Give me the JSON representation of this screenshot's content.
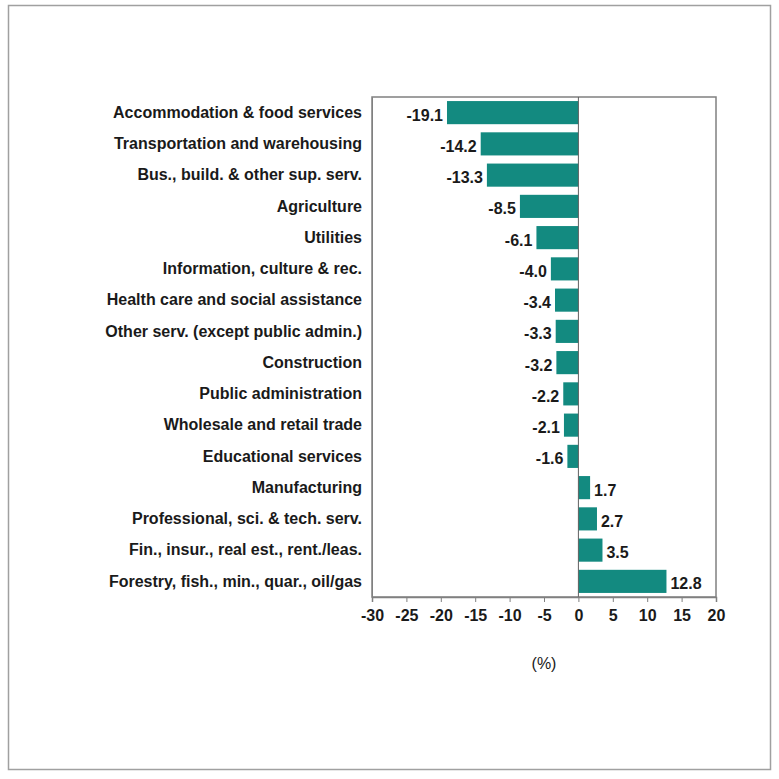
{
  "chart_data": {
    "type": "bar",
    "orientation": "horizontal",
    "categories": [
      "Accommodation & food services",
      "Transportation and warehousing",
      "Bus., build. & other sup. serv.",
      "Agriculture",
      "Utilities",
      "Information, culture & rec.",
      "Health care and social assistance",
      "Other serv. (except public admin.)",
      "Construction",
      "Public administration",
      "Wholesale and retail trade",
      "Educational services",
      "Manufacturing",
      "Professional, sci. & tech. serv.",
      "Fin., insur., real est., rent./leas.",
      "Forestry, fish., min., quar., oil/gas"
    ],
    "values": [
      -19.1,
      -14.2,
      -13.3,
      -8.5,
      -6.1,
      -4.0,
      -3.4,
      -3.3,
      -3.2,
      -2.2,
      -2.1,
      -1.6,
      1.7,
      2.7,
      3.5,
      12.8
    ],
    "value_labels": [
      "-19.1",
      "-14.2",
      "-13.3",
      "-8.5",
      "-6.1",
      "-4.0",
      "-3.4",
      "-3.3",
      "-3.2",
      "-2.2",
      "-2.1",
      "-1.6",
      "1.7",
      "2.7",
      "3.5",
      "12.8"
    ],
    "color": "#138a80",
    "xlim": [
      -30,
      20
    ],
    "xticks": [
      -30,
      -25,
      -20,
      -15,
      -10,
      -5,
      0,
      5,
      10,
      15,
      20
    ],
    "xlabel": "(%)",
    "data_labels": true,
    "grid": false
  }
}
